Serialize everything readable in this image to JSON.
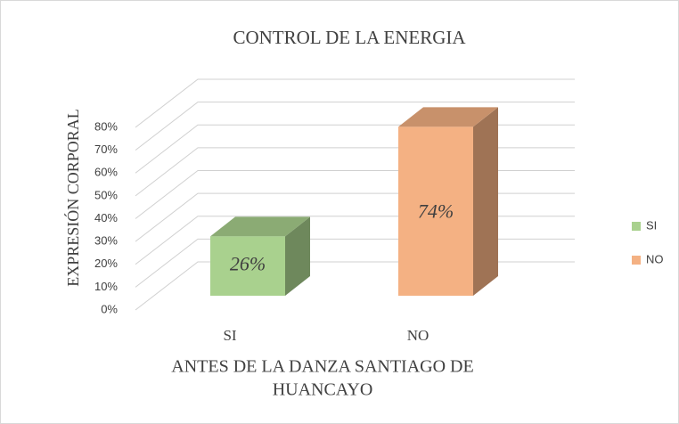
{
  "chart_data": {
    "type": "bar3d",
    "title": "CONTROL DE LA ENERGIA",
    "y_label": "EXPRESIÓN CORPORAL",
    "x_label": [
      "ANTES DE LA DANZA SANTIAGO DE",
      "HUANCAYO"
    ],
    "categories": [
      "SI",
      "NO"
    ],
    "values": [
      26,
      74
    ],
    "value_labels": [
      "26%",
      "74%"
    ],
    "colors": [
      "#a9d18e",
      "#f4b183"
    ],
    "ylim": [
      0,
      80
    ],
    "yticks": [
      {
        "value": 0,
        "label": "0%"
      },
      {
        "value": 10,
        "label": "10%"
      },
      {
        "value": 20,
        "label": "20%"
      },
      {
        "value": 30,
        "label": "30%"
      },
      {
        "value": 40,
        "label": "40%"
      },
      {
        "value": 50,
        "label": "50%"
      },
      {
        "value": 60,
        "label": "60%"
      },
      {
        "value": 70,
        "label": "70%"
      },
      {
        "value": 80,
        "label": "80%"
      }
    ],
    "grid": true,
    "legend": "right"
  }
}
